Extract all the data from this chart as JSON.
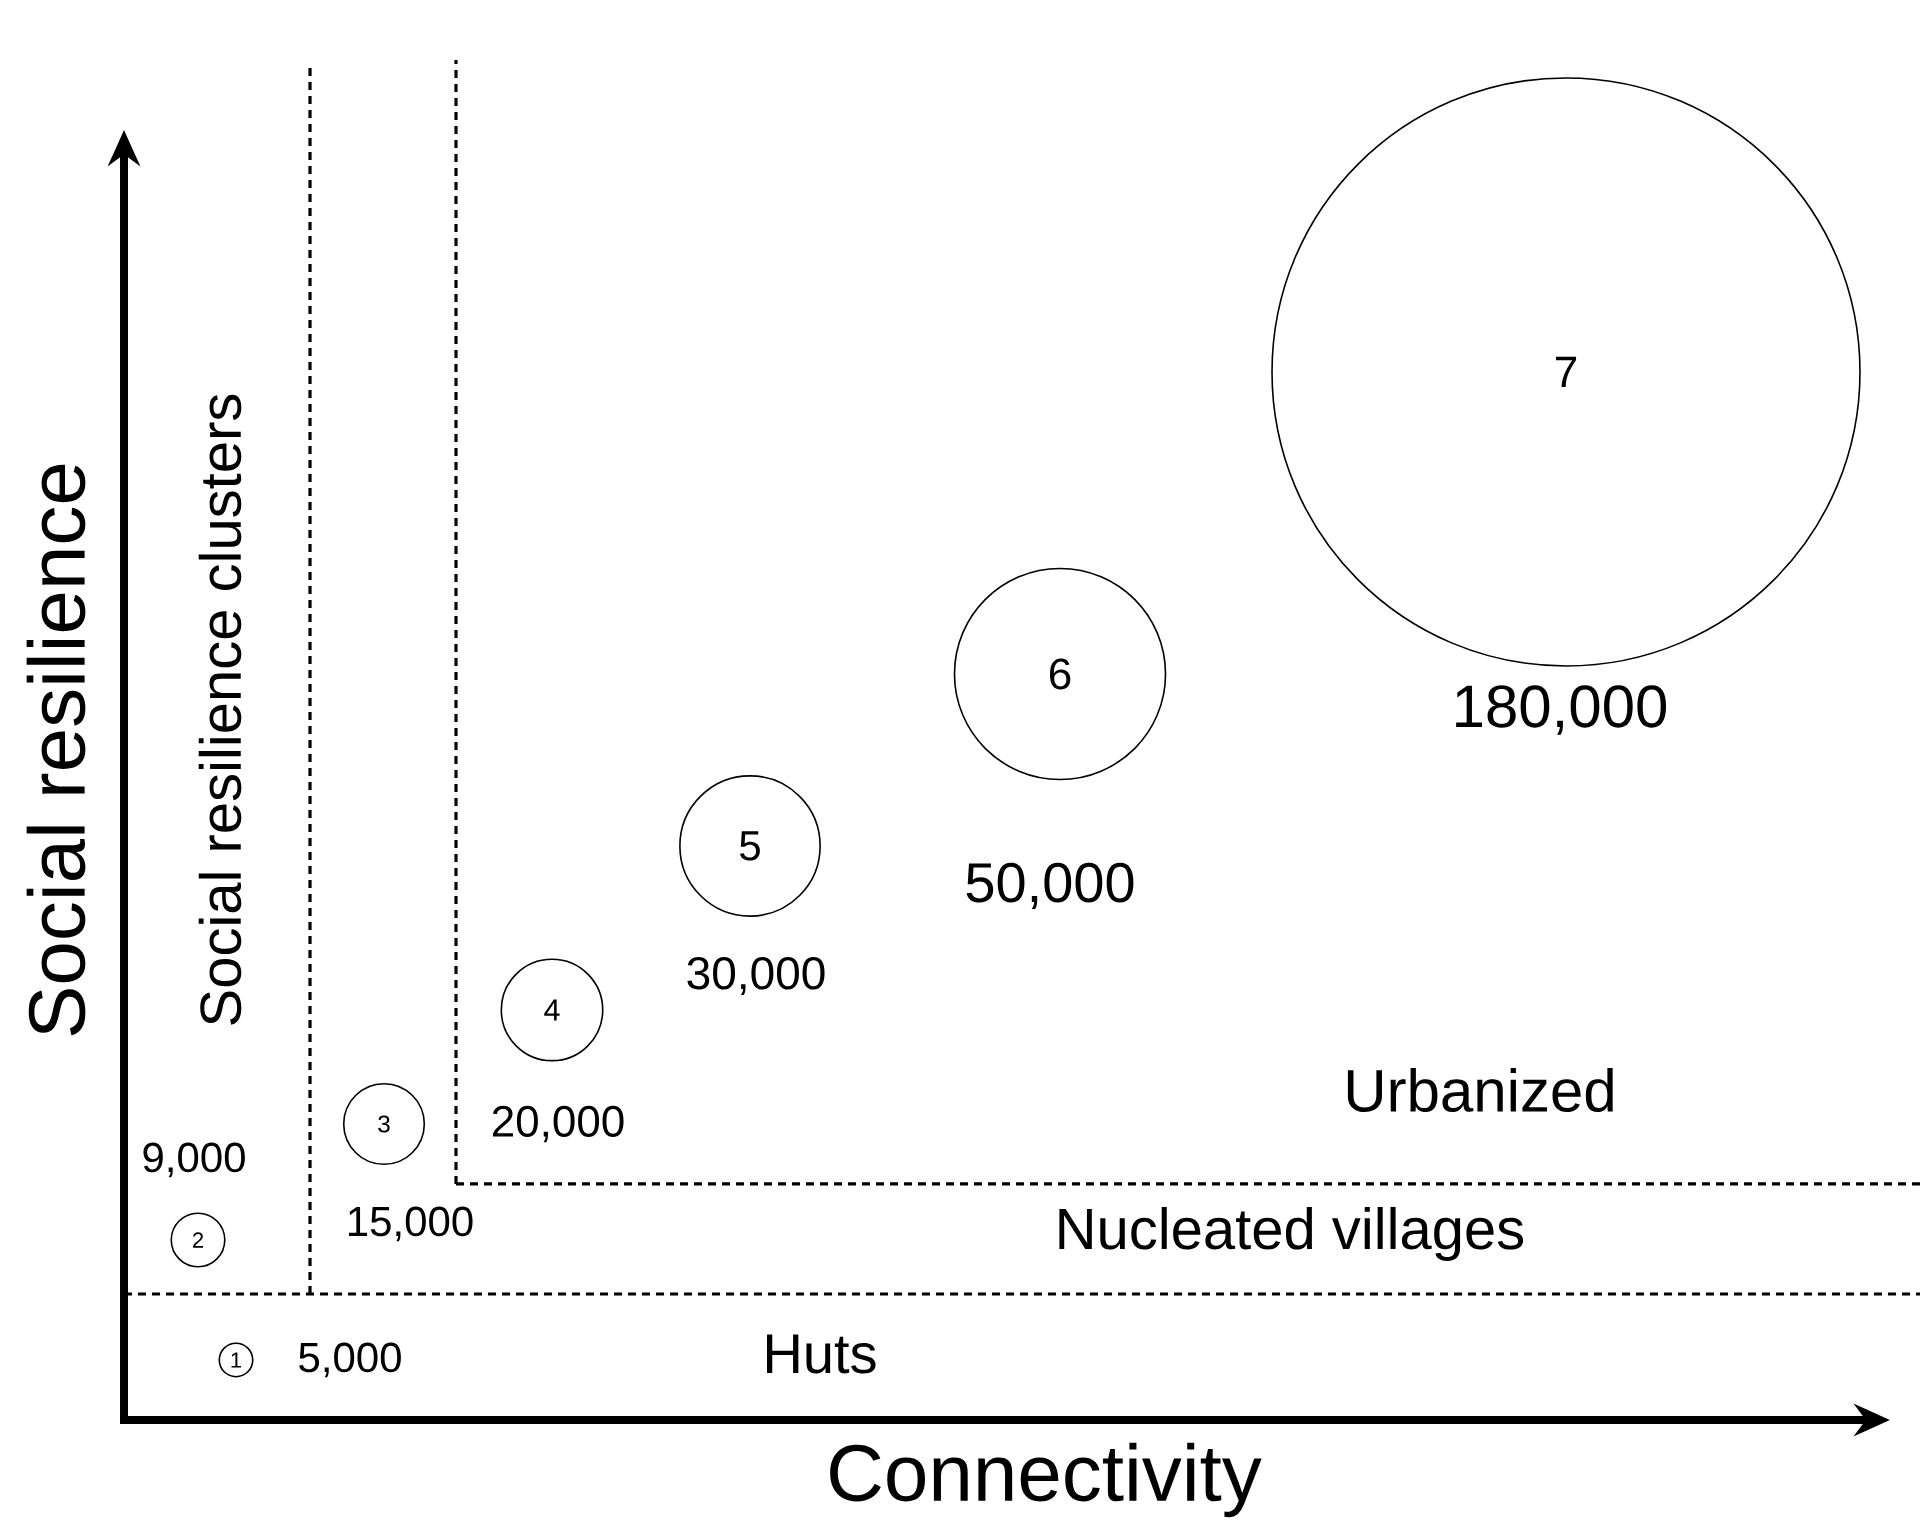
{
  "chart_data": {
    "type": "other",
    "xlabel": "Connectivity",
    "ylabel": "Social resilience",
    "categories": [
      "1",
      "2",
      "3",
      "4",
      "5",
      "6",
      "7"
    ],
    "values": [
      5000,
      9000,
      15000,
      20000,
      30000,
      50000,
      180000
    ],
    "value_labels": [
      "5,000",
      "9,000",
      "15,000",
      "20,000",
      "30,000",
      "50,000",
      "180,000"
    ],
    "annotations": [
      "Huts",
      "Nucleated villages",
      "Urbanized",
      "Social resilience clusters"
    ]
  }
}
